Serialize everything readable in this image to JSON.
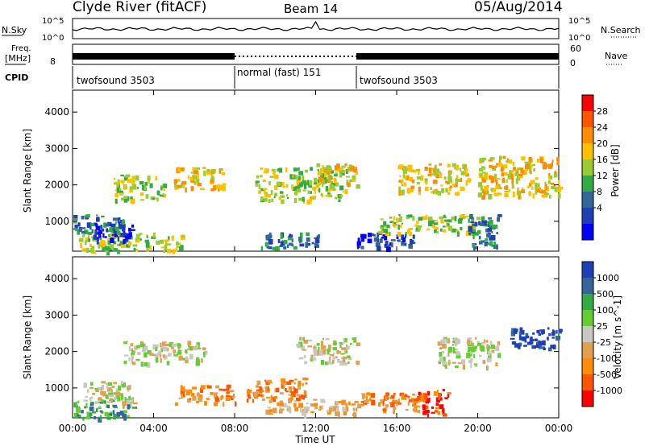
{
  "header": {
    "station": "Clyde River (fitACF)",
    "beam": "Beam 14",
    "date": "05/Aug/2014"
  },
  "top_panels": {
    "noise": {
      "left_label": "N.Sky",
      "right_label": "N.Search",
      "left_ticks": [
        "10^5",
        "10^0"
      ],
      "right_ticks": [
        "10^5",
        "10^0"
      ]
    },
    "freq": {
      "left_label_1": "Freq.",
      "left_label_2": "[MHz]",
      "left_ticks": [
        "8"
      ],
      "right_ticks": [
        "60",
        "0"
      ],
      "right_label": "Nave"
    },
    "cpid": {
      "label": "CPID",
      "segments": [
        {
          "name": "twofsound 3503",
          "start_h": 0,
          "end_h": 8
        },
        {
          "name": "normal (fast) 151",
          "start_h": 8,
          "end_h": 14
        },
        {
          "name": "twofsound 3503",
          "start_h": 14,
          "end_h": 24
        }
      ]
    }
  },
  "chart_data": [
    {
      "type": "heatmap",
      "title": "Power",
      "xlabel": "Time UT",
      "ylabel": "Slant Range [km]",
      "x_ticks": [
        "00:00",
        "04:00",
        "08:00",
        "12:00",
        "16:00",
        "20:00",
        "00:00"
      ],
      "xlim_hours": [
        0,
        24
      ],
      "y_ticks": [
        1000,
        2000,
        3000,
        4000
      ],
      "ylim": [
        180,
        4600
      ],
      "colorbar": {
        "label": "Power [dB]",
        "ticks": [
          "28",
          "24",
          "20",
          "16",
          "12",
          "8",
          "4"
        ],
        "colors": [
          "#ff0000",
          "#ff5500",
          "#ff8c00",
          "#ffc000",
          "#99cc33",
          "#33aa44",
          "#336699",
          "#1e40b4",
          "#0000ff"
        ]
      },
      "patches": [
        {
          "t": [
            0.3,
            5.5
          ],
          "r": [
            200,
            700
          ],
          "level": 4
        },
        {
          "t": [
            1.0,
            3.0
          ],
          "r": [
            500,
            1000
          ],
          "level": 8
        },
        {
          "t": [
            0.0,
            2.5
          ],
          "r": [
            700,
            1200
          ],
          "level": 6
        },
        {
          "t": [
            2.0,
            4.5
          ],
          "r": [
            1600,
            2300
          ],
          "level": 4
        },
        {
          "t": [
            5.0,
            7.5
          ],
          "r": [
            1900,
            2500
          ],
          "level": 3
        },
        {
          "t": [
            9.3,
            12.2
          ],
          "r": [
            300,
            700
          ],
          "level": 6
        },
        {
          "t": [
            9.0,
            13.5
          ],
          "r": [
            1600,
            2500
          ],
          "level": 4
        },
        {
          "t": [
            12.0,
            14.0
          ],
          "r": [
            2000,
            2600
          ],
          "level": 3
        },
        {
          "t": [
            14.0,
            16.8
          ],
          "r": [
            300,
            700
          ],
          "level": 7
        },
        {
          "t": [
            15.0,
            20.0
          ],
          "r": [
            700,
            1200
          ],
          "level": 4
        },
        {
          "t": [
            16.0,
            19.5
          ],
          "r": [
            1800,
            2600
          ],
          "level": 3
        },
        {
          "t": [
            20.0,
            24.0
          ],
          "r": [
            1700,
            2800
          ],
          "level": 3
        },
        {
          "t": [
            19.5,
            21.0
          ],
          "r": [
            300,
            1200
          ],
          "level": 6
        }
      ]
    },
    {
      "type": "heatmap",
      "title": "Velocity",
      "xlabel": "Time UT",
      "ylabel": "Slant Range [km]",
      "x_ticks": [
        "00:00",
        "04:00",
        "08:00",
        "12:00",
        "16:00",
        "20:00",
        "00:00"
      ],
      "xlim_hours": [
        0,
        24
      ],
      "y_ticks": [
        1000,
        2000,
        3000,
        4000
      ],
      "ylim": [
        180,
        4600
      ],
      "colorbar": {
        "label": "Velocity [m s^-1]",
        "ticks": [
          "1000",
          "500",
          "100",
          "25",
          "-25",
          "-100",
          "-500",
          "-1000"
        ],
        "colors": [
          "#1e40b4",
          "#336699",
          "#33aa44",
          "#66cc33",
          "#c8c8c0",
          "#e0a050",
          "#ff8c00",
          "#ff5500",
          "#ff0000"
        ]
      },
      "patches": [
        {
          "t": [
            0.0,
            3.0
          ],
          "r": [
            200,
            700
          ],
          "level": 2
        },
        {
          "t": [
            0.5,
            3.0
          ],
          "r": [
            600,
            1200
          ],
          "level": 4
        },
        {
          "t": [
            2.5,
            6.5
          ],
          "r": [
            1700,
            2300
          ],
          "level": 4
        },
        {
          "t": [
            5.0,
            8.0
          ],
          "r": [
            600,
            1100
          ],
          "level": 6
        },
        {
          "t": [
            8.5,
            11.5
          ],
          "r": [
            700,
            1300
          ],
          "level": 6
        },
        {
          "t": [
            9.5,
            14.0
          ],
          "r": [
            300,
            700
          ],
          "level": 5
        },
        {
          "t": [
            11.0,
            14.0
          ],
          "r": [
            1700,
            2400
          ],
          "level": 4
        },
        {
          "t": [
            14.0,
            17.5
          ],
          "r": [
            400,
            900
          ],
          "level": 6
        },
        {
          "t": [
            17.0,
            18.5
          ],
          "r": [
            300,
            1000
          ],
          "level": 7
        },
        {
          "t": [
            18.0,
            21.0
          ],
          "r": [
            1600,
            2400
          ],
          "level": 4
        },
        {
          "t": [
            21.5,
            24.0
          ],
          "r": [
            2100,
            2700
          ],
          "level": 0
        }
      ]
    }
  ]
}
